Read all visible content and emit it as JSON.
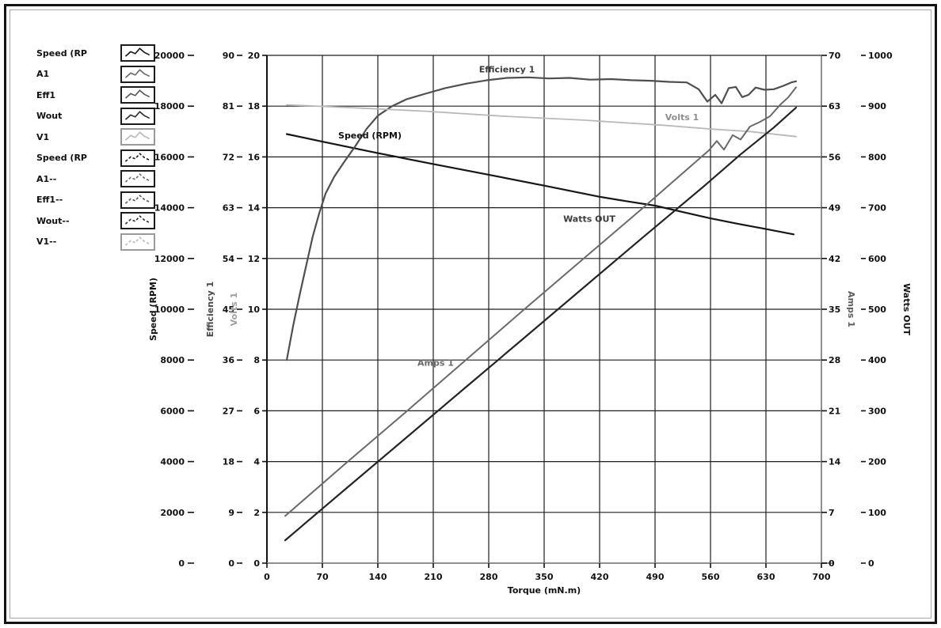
{
  "page": {
    "background": "#ffffff",
    "frame_color": "#141414"
  },
  "legend": {
    "items": [
      {
        "label": "Speed (RP",
        "color": "#1a1a1a",
        "dashed": false
      },
      {
        "label": "A1",
        "color": "#6a6a6a",
        "dashed": false
      },
      {
        "label": "Eff1",
        "color": "#565656",
        "dashed": false
      },
      {
        "label": "Wout",
        "color": "#2d2d2d",
        "dashed": false
      },
      {
        "label": "V1",
        "color": "#b9b9b9",
        "dashed": false
      },
      {
        "label": "Speed (RP",
        "color": "#1a1a1a",
        "dashed": true
      },
      {
        "label": "A1--",
        "color": "#6a6a6a",
        "dashed": true
      },
      {
        "label": "Eff1--",
        "color": "#565656",
        "dashed": true
      },
      {
        "label": "Wout--",
        "color": "#2d2d2d",
        "dashed": true
      },
      {
        "label": "V1--",
        "color": "#b9b9b9",
        "dashed": true
      }
    ]
  },
  "chart_data": {
    "type": "line",
    "title": "",
    "xlabel": "Torque (mN.m)",
    "grid": true,
    "legend_position": "outside-top-left",
    "x_axis": {
      "min": 0,
      "max": 700,
      "step": 70,
      "tick_labels": [
        "0",
        "70",
        "140",
        "210",
        "280",
        "350",
        "420",
        "490",
        "560",
        "630",
        "700"
      ]
    },
    "y_axes": [
      {
        "id": "speed",
        "title": "Speed (RPM)",
        "side": "left",
        "min": 0,
        "max": 20000,
        "step": 2000,
        "color": "#111111"
      },
      {
        "id": "efficiency",
        "title": "Efficiency 1",
        "side": "left",
        "min": 0,
        "max": 90,
        "step": 9,
        "color": "#4a4a4a"
      },
      {
        "id": "volts",
        "title": "Volts 1",
        "side": "left",
        "min": 0,
        "max": 20,
        "step": 2,
        "color": "#9e9e9e"
      },
      {
        "id": "amps",
        "title": "Amps 1",
        "side": "right",
        "min": 0,
        "max": 70,
        "step": 7,
        "color": "#5e5e5e"
      },
      {
        "id": "watts",
        "title": "Watts OUT",
        "side": "right",
        "min": 0,
        "max": 1000,
        "step": 100,
        "color": "#111111"
      }
    ],
    "series": [
      {
        "name": "Speed (RPM)",
        "axis": "speed",
        "color": "#161616",
        "width": 2.2,
        "dashed": false,
        "points": [
          [
            25,
            16900
          ],
          [
            70,
            16600
          ],
          [
            140,
            16150
          ],
          [
            210,
            15720
          ],
          [
            280,
            15300
          ],
          [
            350,
            14870
          ],
          [
            420,
            14430
          ],
          [
            455,
            14250
          ],
          [
            490,
            14080
          ],
          [
            525,
            13830
          ],
          [
            560,
            13580
          ],
          [
            595,
            13360
          ],
          [
            630,
            13160
          ],
          [
            665,
            12950
          ]
        ]
      },
      {
        "name": "Efficiency 1",
        "axis": "efficiency",
        "color": "#4f4f4f",
        "width": 2.2,
        "dashed": false,
        "points": [
          [
            25,
            36
          ],
          [
            33,
            42
          ],
          [
            42,
            48
          ],
          [
            50,
            53
          ],
          [
            58,
            58
          ],
          [
            66,
            62
          ],
          [
            74,
            65.5
          ],
          [
            85,
            68.5
          ],
          [
            97,
            71
          ],
          [
            112,
            74
          ],
          [
            126,
            77
          ],
          [
            140,
            79.3
          ],
          [
            158,
            81
          ],
          [
            176,
            82.2
          ],
          [
            200,
            83.2
          ],
          [
            225,
            84.2
          ],
          [
            252,
            85
          ],
          [
            278,
            85.6
          ],
          [
            303,
            86
          ],
          [
            330,
            86.1
          ],
          [
            356,
            85.9
          ],
          [
            382,
            86
          ],
          [
            408,
            85.7
          ],
          [
            434,
            85.8
          ],
          [
            460,
            85.6
          ],
          [
            485,
            85.5
          ],
          [
            508,
            85.3
          ],
          [
            530,
            85.2
          ],
          [
            545,
            84
          ],
          [
            556,
            81.8
          ],
          [
            566,
            83
          ],
          [
            574,
            81.5
          ],
          [
            583,
            84.2
          ],
          [
            592,
            84.4
          ],
          [
            600,
            82.6
          ],
          [
            608,
            83
          ],
          [
            617,
            84.3
          ],
          [
            628,
            83.9
          ],
          [
            640,
            84
          ],
          [
            652,
            84.6
          ],
          [
            662,
            85.2
          ],
          [
            668,
            85.4
          ]
        ]
      },
      {
        "name": "Volts 1",
        "axis": "volts",
        "color": "#b9b9b9",
        "width": 1.8,
        "dashed": false,
        "points": [
          [
            25,
            18.05
          ],
          [
            100,
            17.95
          ],
          [
            200,
            17.8
          ],
          [
            300,
            17.6
          ],
          [
            400,
            17.45
          ],
          [
            500,
            17.25
          ],
          [
            560,
            17.1
          ],
          [
            610,
            17.0
          ],
          [
            668,
            16.8
          ]
        ]
      },
      {
        "name": "Amps 1",
        "axis": "amps",
        "color": "#6a6a6a",
        "width": 2.0,
        "dashed": false,
        "points": [
          [
            23,
            6.5
          ],
          [
            100,
            13.8
          ],
          [
            175,
            20.8
          ],
          [
            250,
            27.9
          ],
          [
            325,
            35
          ],
          [
            400,
            42
          ],
          [
            475,
            49
          ],
          [
            540,
            55.2
          ],
          [
            558,
            56.9
          ],
          [
            568,
            58.2
          ],
          [
            577,
            57
          ],
          [
            588,
            59
          ],
          [
            598,
            58.4
          ],
          [
            610,
            60.2
          ],
          [
            622,
            60.8
          ],
          [
            635,
            61.6
          ],
          [
            648,
            63.2
          ],
          [
            658,
            64.2
          ],
          [
            668,
            65.6
          ]
        ]
      },
      {
        "name": "Watts OUT",
        "axis": "watts",
        "color": "#242424",
        "width": 2.2,
        "dashed": false,
        "points": [
          [
            23,
            45
          ],
          [
            100,
            147
          ],
          [
            175,
            246
          ],
          [
            250,
            345
          ],
          [
            325,
            444
          ],
          [
            400,
            543
          ],
          [
            475,
            642
          ],
          [
            550,
            740
          ],
          [
            598,
            805
          ],
          [
            640,
            858
          ],
          [
            668,
            897
          ]
        ]
      }
    ],
    "annotations": [
      {
        "text": "Efficiency 1",
        "axis": "efficiency",
        "x": 303,
        "y": 87,
        "color": "#3c3c3c"
      },
      {
        "text": "Volts 1",
        "axis": "volts",
        "x": 524,
        "y": 17.45,
        "color": "#8f8f8f"
      },
      {
        "text": "Speed (RPM)",
        "axis": "speed",
        "x": 130,
        "y": 16730,
        "color": "#101010"
      },
      {
        "text": "Watts OUT",
        "axis": "watts",
        "x": 407,
        "y": 672,
        "color": "#3c3c3c"
      },
      {
        "text": "Amps 1",
        "axis": "amps",
        "x": 213,
        "y": 27.2,
        "color": "#6a6a6a"
      }
    ]
  }
}
